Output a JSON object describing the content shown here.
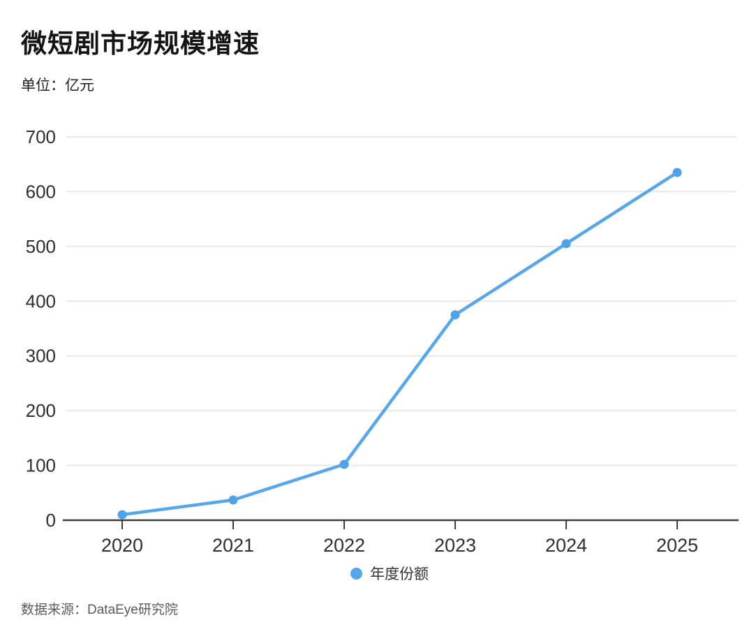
{
  "chart": {
    "title": "微短剧市场规模增速",
    "unit_label": "单位：亿元",
    "legend_label": "年度份额",
    "source": "数据来源：DataEye研究院"
  },
  "chart_data": {
    "type": "line",
    "title": "微短剧市场规模增速",
    "x": [
      "2020",
      "2021",
      "2022",
      "2023",
      "2024",
      "2025"
    ],
    "series": [
      {
        "name": "年度份额",
        "values": [
          10,
          37,
          102,
          375,
          505,
          635
        ]
      }
    ],
    "xlabel": "",
    "ylabel": "亿元",
    "ylim": [
      0,
      700
    ],
    "y_ticks": [
      0,
      100,
      200,
      300,
      400,
      500,
      600,
      700
    ],
    "grid": true,
    "legend_position": "bottom",
    "colors": {
      "line": "#55a7e9",
      "point": "#4da2e8",
      "grid": "#e8e8e8",
      "axis": "#3d3d3d",
      "tick_text": "#2e2e2e"
    }
  }
}
